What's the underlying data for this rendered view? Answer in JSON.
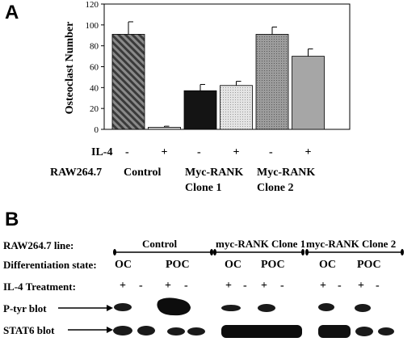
{
  "panel_a": {
    "letter": "A",
    "il4_row_label": "IL-4",
    "raw_row_label": "RAW264.7",
    "il4_marks": [
      "-",
      "+",
      "-",
      "+",
      "-",
      "+"
    ],
    "groups": [
      {
        "line1": "Control",
        "line2": ""
      },
      {
        "line1": "Myc-RANK",
        "line2": "Clone 1"
      },
      {
        "line1": "Myc-RANK",
        "line2": "Clone 2"
      }
    ]
  },
  "chart_data": {
    "type": "bar",
    "categories": [
      "Control -",
      "Control +",
      "Myc-RANK Clone 1 -",
      "Myc-RANK Clone 1 +",
      "Myc-RANK Clone 2 -",
      "Myc-RANK Clone 2 +"
    ],
    "values": [
      91,
      2,
      37,
      42,
      91,
      70
    ],
    "errors": [
      12,
      1,
      6,
      4,
      7,
      7
    ],
    "ylabel": "Osteoclast Number",
    "ylim": [
      0,
      120
    ],
    "yticks": [
      0,
      20,
      40,
      60,
      80,
      100,
      120
    ],
    "grid": false,
    "fills": [
      "hatch-diagonal",
      "light-gray",
      "black",
      "light-dotted",
      "gray-dotted",
      "gray"
    ]
  },
  "panel_b": {
    "letter": "B",
    "raw_line_label": "RAW264.7 line:",
    "diff_label": "Differentiation state:",
    "il4_label": "IL-4 Treatment:",
    "ptyr_label": "P-tyr blot",
    "stat6_label": "STAT6 blot",
    "groups": [
      {
        "name": "Control",
        "oc": "OC",
        "poc": "POC",
        "marks": [
          "+",
          "-",
          "+",
          "-"
        ]
      },
      {
        "name": "myc-RANK Clone 1",
        "oc": "OC",
        "poc": "POC",
        "marks": [
          "+",
          "-",
          "+",
          "-"
        ]
      },
      {
        "name": "myc-RANK Clone 2",
        "oc": "OC",
        "poc": "POC",
        "marks": [
          "+",
          "-",
          "+",
          "-"
        ]
      }
    ]
  }
}
